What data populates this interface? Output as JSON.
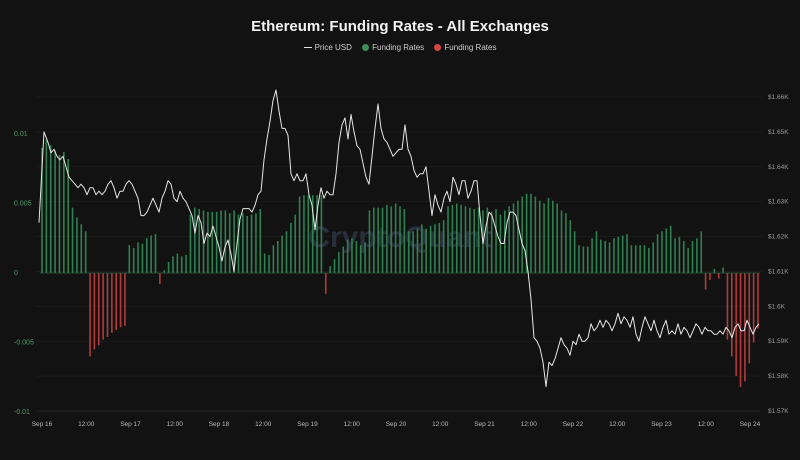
{
  "title": "Ethereum: Funding Rates - All Exchanges",
  "legend": [
    {
      "label": "Price USD",
      "type": "line",
      "color": "#e0e0e0"
    },
    {
      "label": "Funding Rates",
      "type": "dot",
      "color": "#3e8e5a"
    },
    {
      "label": "Funding Rates",
      "type": "dot",
      "color": "#d64545"
    }
  ],
  "watermark": "CryptoQuant",
  "colors": {
    "positive": "#2f8050",
    "negative": "#b13a3a",
    "price": "#e6e6e6",
    "background": "#121212"
  },
  "chart_data": {
    "type": "bar+line",
    "title": "Ethereum: Funding Rates - All Exchanges",
    "xlabel": "",
    "ylabel_left": "Funding Rates",
    "ylabel_right": "Price USD",
    "x_ticks": [
      "Sep 16",
      "12:00",
      "Sep 17",
      "12:00",
      "Sep 18",
      "12:00",
      "Sep 19",
      "12:00",
      "Sep 20",
      "12:00",
      "Sep 21",
      "12:00",
      "Sep 22",
      "12:00",
      "Sep 23",
      "12:00",
      "Sep 24"
    ],
    "y_left_ticks": [
      "0.01",
      "0.005",
      "0",
      "-0.005",
      "-0.01"
    ],
    "y_left_values": [
      0.01,
      0.005,
      0,
      -0.005,
      -0.01
    ],
    "ylim_left": [
      -0.01,
      0.01
    ],
    "y_right_ticks": [
      "$1.66K",
      "$1.65K",
      "$1.64K",
      "$1.63K",
      "$1.62K",
      "$1.61K",
      "$1.6K",
      "$1.59K",
      "$1.58K",
      "$1.57K"
    ],
    "y_right_values": [
      1660,
      1650,
      1640,
      1630,
      1620,
      1610,
      1600,
      1590,
      1580,
      1570
    ],
    "ylim_right": [
      1570,
      1662
    ],
    "grid": true,
    "legend_position": "top",
    "series": [
      {
        "name": "Funding Rates",
        "type": "bar",
        "note": "hourly, Sep 16 00:00 to Sep 24; positive green, negative red",
        "values": [
          0.009,
          0.0096,
          0.0092,
          0.0088,
          0.0085,
          0.0087,
          0.0082,
          0.0047,
          0.004,
          0.0035,
          0.003,
          -0.006,
          -0.0055,
          -0.0052,
          -0.0048,
          -0.0046,
          -0.0043,
          -0.0041,
          -0.0039,
          -0.0038,
          0.002,
          0.0018,
          0.0022,
          0.0021,
          0.0025,
          0.0027,
          0.0028,
          -0.0008,
          0.0002,
          0.0008,
          0.0012,
          0.0014,
          0.0012,
          0.0013,
          0.0042,
          0.0047,
          0.0046,
          0.0045,
          0.0044,
          0.0044,
          0.0044,
          0.0045,
          0.0045,
          0.0043,
          0.0045,
          0.0042,
          0.0043,
          0.0041,
          0.0042,
          0.0043,
          0.0046,
          0.0014,
          0.0013,
          0.002,
          0.0023,
          0.0027,
          0.003,
          0.0036,
          0.0042,
          0.0055,
          0.0056,
          0.0056,
          0.0056,
          0.0056,
          0.0056,
          -0.0015,
          0.0005,
          0.001,
          0.0015,
          0.0019,
          0.0024,
          0.0025,
          0.0023,
          0.002,
          0.0022,
          0.0045,
          0.0047,
          0.0047,
          0.0047,
          0.0049,
          0.0048,
          0.005,
          0.0048,
          0.0046,
          0.003,
          0.003,
          0.0032,
          0.0035,
          0.0032,
          0.0034,
          0.0035,
          0.0036,
          0.0038,
          0.0048,
          0.0049,
          0.005,
          0.0049,
          0.0048,
          0.0047,
          0.0046,
          0.0047,
          0.0045,
          0.0047,
          0.0044,
          0.0046,
          0.0042,
          0.0045,
          0.0048,
          0.005,
          0.0052,
          0.0055,
          0.0057,
          0.0057,
          0.0055,
          0.0052,
          0.005,
          0.0054,
          0.0052,
          0.005,
          0.0045,
          0.0043,
          0.0038,
          0.003,
          0.002,
          0.0019,
          0.0019,
          0.0025,
          0.003,
          0.0024,
          0.0023,
          0.0022,
          0.0025,
          0.0026,
          0.0027,
          0.0028,
          0.002,
          0.002,
          0.002,
          0.002,
          0.0018,
          0.0022,
          0.0028,
          0.003,
          0.0032,
          0.0034,
          0.0025,
          0.0026,
          0.0023,
          0.0018,
          0.0023,
          0.0025,
          0.003,
          -0.0012,
          -0.0005,
          0.0003,
          -0.0004,
          0.0004,
          -0.0048,
          -0.006,
          -0.0074,
          -0.0082,
          -0.0078,
          -0.0065,
          -0.005,
          -0.004
        ]
      },
      {
        "name": "Price USD",
        "type": "line",
        "points": [
          [
            39,
            1624
          ],
          [
            44,
            1650
          ],
          [
            48,
            1647
          ],
          [
            51,
            1644
          ],
          [
            54,
            1645
          ],
          [
            57,
            1643
          ],
          [
            60,
            1642
          ],
          [
            63,
            1643
          ],
          [
            66,
            1640
          ],
          [
            69,
            1637
          ],
          [
            72,
            1636
          ],
          [
            75,
            1635
          ],
          [
            78,
            1634
          ],
          [
            81,
            1635
          ],
          [
            84,
            1634
          ],
          [
            87,
            1632
          ],
          [
            90,
            1634
          ],
          [
            93,
            1634
          ],
          [
            96,
            1632
          ],
          [
            99,
            1633
          ],
          [
            102,
            1632
          ],
          [
            105,
            1633
          ],
          [
            108,
            1635
          ],
          [
            111,
            1636
          ],
          [
            114,
            1634
          ],
          [
            117,
            1631
          ],
          [
            120,
            1633
          ],
          [
            123,
            1633
          ],
          [
            126,
            1635
          ],
          [
            129,
            1636
          ],
          [
            132,
            1635
          ],
          [
            135,
            1633
          ],
          [
            138,
            1631
          ],
          [
            141,
            1626
          ],
          [
            144,
            1626
          ],
          [
            147,
            1627
          ],
          [
            150,
            1629
          ],
          [
            153,
            1631
          ],
          [
            156,
            1629
          ],
          [
            159,
            1627
          ],
          [
            162,
            1631
          ],
          [
            165,
            1633
          ],
          [
            168,
            1636
          ],
          [
            171,
            1635
          ],
          [
            174,
            1631
          ],
          [
            177,
            1630
          ],
          [
            180,
            1633
          ],
          [
            183,
            1631
          ],
          [
            186,
            1630
          ],
          [
            189,
            1628
          ],
          [
            192,
            1626
          ],
          [
            195,
            1621
          ],
          [
            198,
            1626
          ],
          [
            201,
            1624
          ],
          [
            204,
            1618
          ],
          [
            207,
            1621
          ],
          [
            210,
            1620
          ],
          [
            213,
            1623
          ],
          [
            216,
            1620
          ],
          [
            219,
            1617
          ],
          [
            222,
            1613
          ],
          [
            225,
            1617
          ],
          [
            228,
            1619
          ],
          [
            231,
            1615
          ],
          [
            234,
            1610
          ],
          [
            237,
            1618
          ],
          [
            240,
            1625
          ],
          [
            243,
            1628
          ],
          [
            246,
            1628
          ],
          [
            249,
            1628
          ],
          [
            252,
            1627
          ],
          [
            255,
            1629
          ],
          [
            258,
            1632
          ],
          [
            261,
            1633
          ],
          [
            264,
            1642
          ],
          [
            267,
            1648
          ],
          [
            270,
            1653
          ],
          [
            273,
            1659
          ],
          [
            276,
            1662
          ],
          [
            279,
            1656
          ],
          [
            282,
            1651
          ],
          [
            285,
            1651
          ],
          [
            288,
            1649
          ],
          [
            291,
            1638
          ],
          [
            294,
            1636
          ],
          [
            297,
            1638
          ],
          [
            300,
            1636
          ],
          [
            303,
            1636
          ],
          [
            306,
            1638
          ],
          [
            309,
            1632
          ],
          [
            312,
            1629
          ],
          [
            315,
            1622
          ],
          [
            318,
            1629
          ],
          [
            321,
            1634
          ],
          [
            324,
            1631
          ],
          [
            327,
            1633
          ],
          [
            330,
            1632
          ],
          [
            333,
            1632
          ],
          [
            336,
            1638
          ],
          [
            339,
            1647
          ],
          [
            342,
            1652
          ],
          [
            345,
            1654
          ],
          [
            348,
            1648
          ],
          [
            351,
            1655
          ],
          [
            354,
            1650
          ],
          [
            357,
            1646
          ],
          [
            360,
            1645
          ],
          [
            363,
            1641
          ],
          [
            366,
            1637
          ],
          [
            369,
            1635
          ],
          [
            372,
            1643
          ],
          [
            375,
            1651
          ],
          [
            378,
            1658
          ],
          [
            381,
            1651
          ],
          [
            384,
            1648
          ],
          [
            387,
            1647
          ],
          [
            390,
            1645
          ],
          [
            393,
            1643
          ],
          [
            396,
            1644
          ],
          [
            399,
            1645
          ],
          [
            402,
            1645
          ],
          [
            405,
            1652
          ],
          [
            408,
            1645
          ],
          [
            411,
            1643
          ],
          [
            414,
            1639
          ],
          [
            417,
            1637
          ],
          [
            420,
            1638
          ],
          [
            423,
            1638
          ],
          [
            426,
            1640
          ],
          [
            429,
            1633
          ],
          [
            432,
            1626
          ],
          [
            435,
            1632
          ],
          [
            438,
            1629
          ],
          [
            441,
            1627
          ],
          [
            444,
            1631
          ],
          [
            447,
            1633
          ],
          [
            450,
            1630
          ],
          [
            453,
            1637
          ],
          [
            456,
            1635
          ],
          [
            459,
            1632
          ],
          [
            462,
            1636
          ],
          [
            465,
            1636
          ],
          [
            468,
            1631
          ],
          [
            471,
            1633
          ],
          [
            474,
            1636
          ],
          [
            477,
            1636
          ],
          [
            480,
            1626
          ],
          [
            483,
            1618
          ],
          [
            486,
            1623
          ],
          [
            489,
            1627
          ],
          [
            492,
            1626
          ],
          [
            495,
            1623
          ],
          [
            498,
            1620
          ],
          [
            501,
            1618
          ],
          [
            504,
            1618
          ],
          [
            507,
            1624
          ],
          [
            510,
            1627
          ],
          [
            513,
            1627
          ],
          [
            516,
            1626
          ],
          [
            519,
            1622
          ],
          [
            522,
            1618
          ],
          [
            525,
            1616
          ],
          [
            528,
            1610
          ],
          [
            531,
            1602
          ],
          [
            534,
            1591
          ],
          [
            537,
            1590
          ],
          [
            540,
            1588
          ],
          [
            543,
            1584
          ],
          [
            546,
            1577
          ],
          [
            549,
            1584
          ],
          [
            552,
            1583
          ],
          [
            555,
            1585
          ],
          [
            558,
            1588
          ],
          [
            561,
            1591
          ],
          [
            564,
            1589
          ],
          [
            567,
            1588
          ],
          [
            570,
            1586
          ],
          [
            573,
            1590
          ],
          [
            576,
            1589
          ],
          [
            579,
            1592
          ],
          [
            582,
            1590
          ],
          [
            585,
            1590
          ],
          [
            588,
            1591
          ],
          [
            591,
            1595
          ],
          [
            594,
            1593
          ],
          [
            597,
            1594
          ],
          [
            600,
            1596
          ],
          [
            603,
            1594
          ],
          [
            606,
            1596
          ],
          [
            609,
            1595
          ],
          [
            612,
            1593
          ],
          [
            615,
            1595
          ],
          [
            618,
            1598
          ],
          [
            621,
            1595
          ],
          [
            624,
            1597
          ],
          [
            627,
            1596
          ],
          [
            630,
            1594
          ],
          [
            633,
            1597
          ],
          [
            636,
            1592
          ],
          [
            639,
            1590
          ],
          [
            642,
            1594
          ],
          [
            645,
            1597
          ],
          [
            648,
            1595
          ],
          [
            651,
            1593
          ],
          [
            654,
            1596
          ],
          [
            657,
            1593
          ],
          [
            660,
            1591
          ],
          [
            663,
            1594
          ],
          [
            666,
            1596
          ],
          [
            669,
            1592
          ],
          [
            672,
            1593
          ],
          [
            675,
            1592
          ],
          [
            678,
            1595
          ],
          [
            681,
            1592
          ],
          [
            684,
            1594
          ],
          [
            687,
            1593
          ],
          [
            690,
            1591
          ],
          [
            693,
            1593
          ],
          [
            696,
            1595
          ],
          [
            699,
            1594
          ],
          [
            702,
            1592
          ],
          [
            705,
            1594
          ],
          [
            708,
            1593
          ],
          [
            711,
            1593
          ],
          [
            714,
            1592
          ],
          [
            717,
            1592
          ],
          [
            720,
            1593
          ],
          [
            723,
            1592
          ],
          [
            726,
            1594
          ],
          [
            729,
            1593
          ],
          [
            732,
            1591
          ],
          [
            735,
            1594
          ],
          [
            738,
            1595
          ],
          [
            741,
            1593
          ],
          [
            744,
            1593
          ],
          [
            747,
            1596
          ],
          [
            750,
            1594
          ],
          [
            753,
            1592
          ],
          [
            756,
            1594
          ],
          [
            759,
            1595
          ]
        ]
      }
    ]
  }
}
